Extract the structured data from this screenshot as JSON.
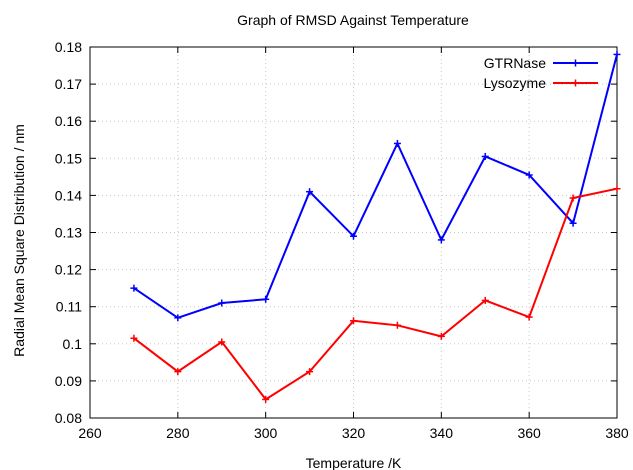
{
  "chart_data": {
    "type": "line",
    "title": "Graph of RMSD Against Temperature",
    "xlabel": "Temperature /K",
    "ylabel": "Radial Mean Square Distribution / nm",
    "xlim": [
      260,
      380
    ],
    "ylim": [
      0.08,
      0.18
    ],
    "xticks": [
      "260",
      "280",
      "300",
      "320",
      "340",
      "360",
      "380"
    ],
    "yticks": [
      "0.08",
      "0.09",
      "0.1",
      "0.11",
      "0.12",
      "0.13",
      "0.14",
      "0.15",
      "0.16",
      "0.17",
      "0.18"
    ],
    "grid": true,
    "legend_position": "top-right",
    "x": [
      270,
      280,
      290,
      300,
      310,
      320,
      330,
      340,
      350,
      360,
      370,
      380
    ],
    "series": [
      {
        "name": "GTRNase",
        "color": "#0000ff",
        "values": [
          0.115,
          0.107,
          0.111,
          0.112,
          0.141,
          0.129,
          0.154,
          0.128,
          0.1505,
          0.1455,
          0.1325,
          0.178
        ]
      },
      {
        "name": "Lysozyme",
        "color": "#ff0000",
        "values": [
          0.1015,
          0.0925,
          0.1005,
          0.085,
          0.0925,
          0.1062,
          0.105,
          0.102,
          0.1117,
          0.1072,
          0.1393,
          0.1418
        ]
      }
    ]
  }
}
